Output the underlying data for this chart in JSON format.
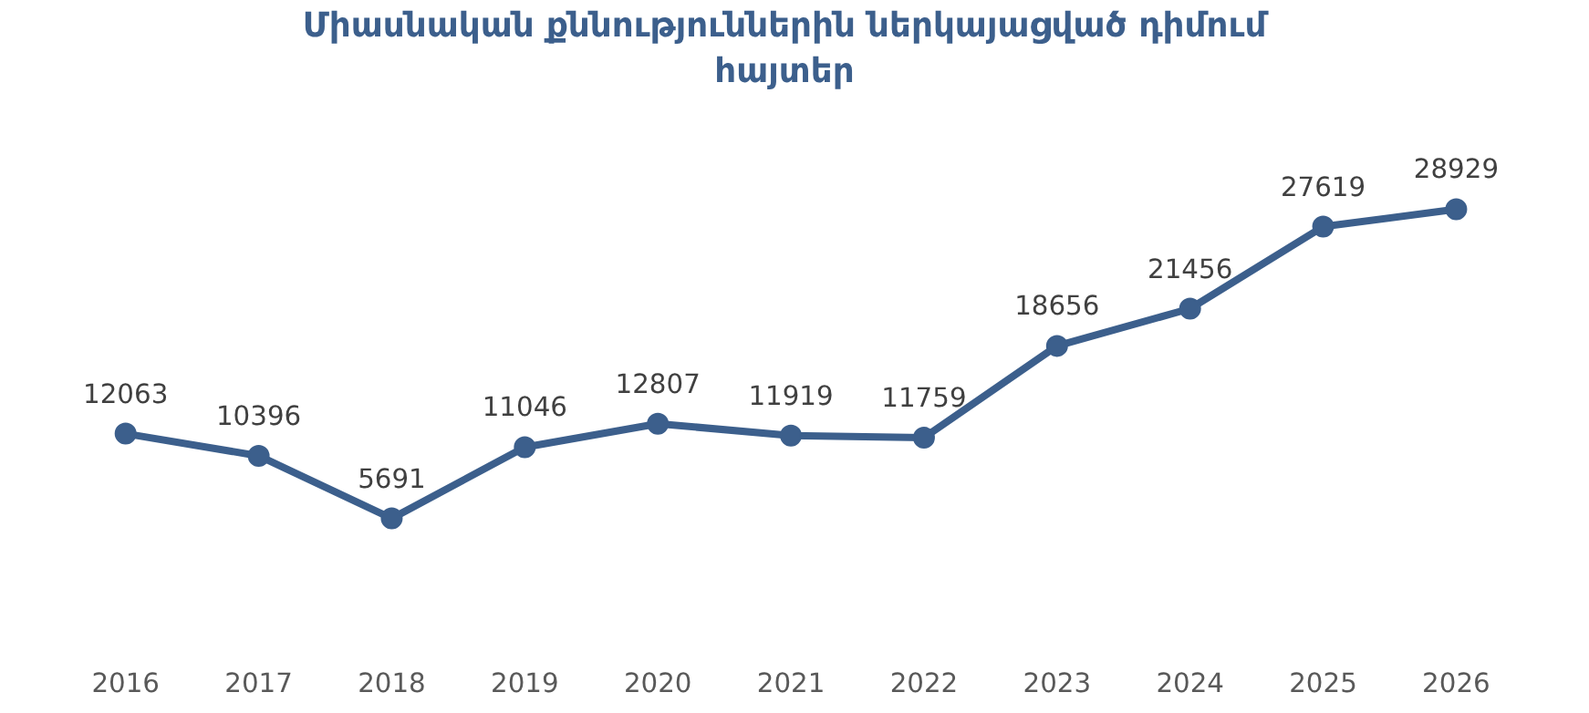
{
  "chart_data": {
    "type": "line",
    "title": "Միասնական քննություններին ներկայացված դիմում հայտեր",
    "categories": [
      "2016",
      "2017",
      "2018",
      "2019",
      "2020",
      "2021",
      "2022",
      "2023",
      "2024",
      "2025",
      "2026"
    ],
    "series": [
      {
        "color": "#3c5f8c",
        "values": [
          12063,
          10396,
          5691,
          11046,
          12807,
          11919,
          11759,
          18656,
          21456,
          27619,
          28929
        ]
      }
    ],
    "data_labels": true,
    "marker": "circle",
    "line_style": "solid",
    "grid": false,
    "tick_labels": "x"
  }
}
